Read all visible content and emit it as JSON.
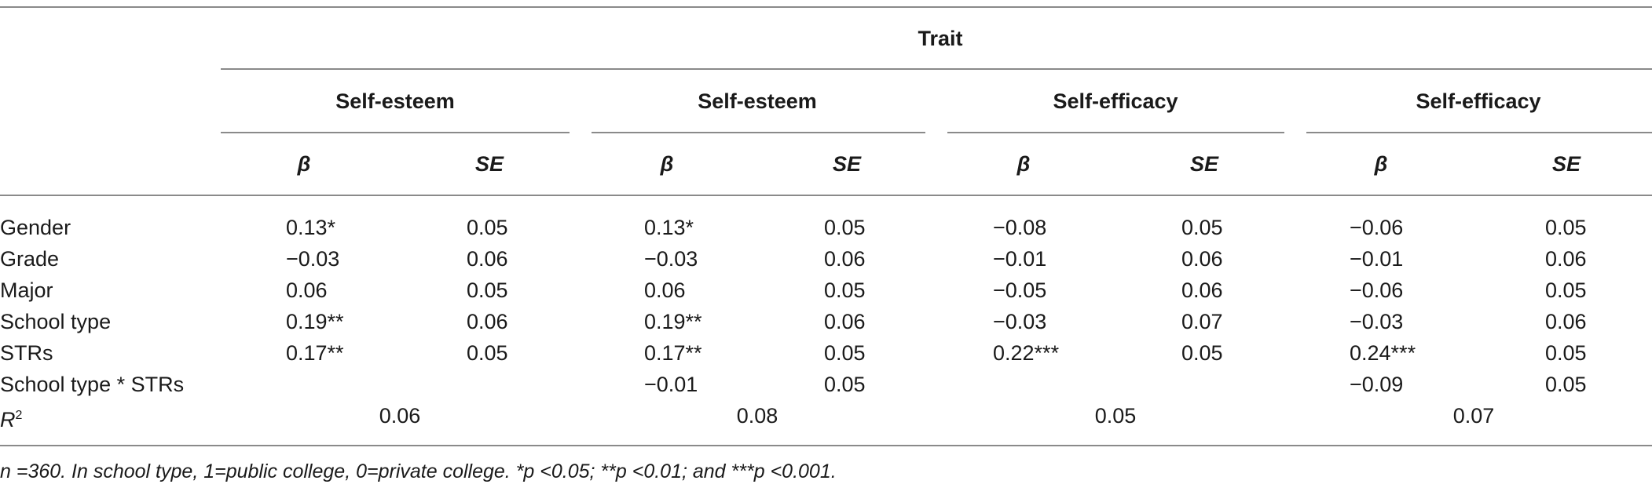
{
  "header": {
    "trait": "Trait",
    "groups": [
      "Self-esteem",
      "Self-esteem",
      "Self-efficacy",
      "Self-efficacy"
    ],
    "beta": "β",
    "se": "SE"
  },
  "rows": [
    {
      "label": "Gender",
      "cells": [
        "0.13*",
        "0.05",
        "0.13*",
        "0.05",
        "−0.08",
        "0.05",
        "−0.06",
        "0.05"
      ]
    },
    {
      "label": "Grade",
      "cells": [
        "−0.03",
        "0.06",
        "−0.03",
        "0.06",
        "−0.01",
        "0.06",
        "−0.01",
        "0.06"
      ]
    },
    {
      "label": "Major",
      "cells": [
        "0.06",
        "0.05",
        "0.06",
        "0.05",
        "−0.05",
        "0.06",
        "−0.06",
        "0.05"
      ]
    },
    {
      "label": "School type",
      "cells": [
        "0.19**",
        "0.06",
        "0.19**",
        "0.06",
        "−0.03",
        "0.07",
        "−0.03",
        "0.06"
      ]
    },
    {
      "label": "STRs",
      "cells": [
        "0.17**",
        "0.05",
        "0.17**",
        "0.05",
        "0.22***",
        "0.05",
        "0.24***",
        "0.05"
      ]
    },
    {
      "label": "School type * STRs",
      "cells": [
        "",
        "",
        "−0.01",
        "0.05",
        "",
        "",
        "−0.09",
        "0.05"
      ]
    }
  ],
  "r2": {
    "label_base": "R",
    "label_sup": "2",
    "values": [
      "0.06",
      "0.08",
      "0.05",
      "0.07"
    ]
  },
  "note": "n =360. In school type, 1=public college, 0=private college. *p <0.05; **p <0.01; and ***p <0.001."
}
